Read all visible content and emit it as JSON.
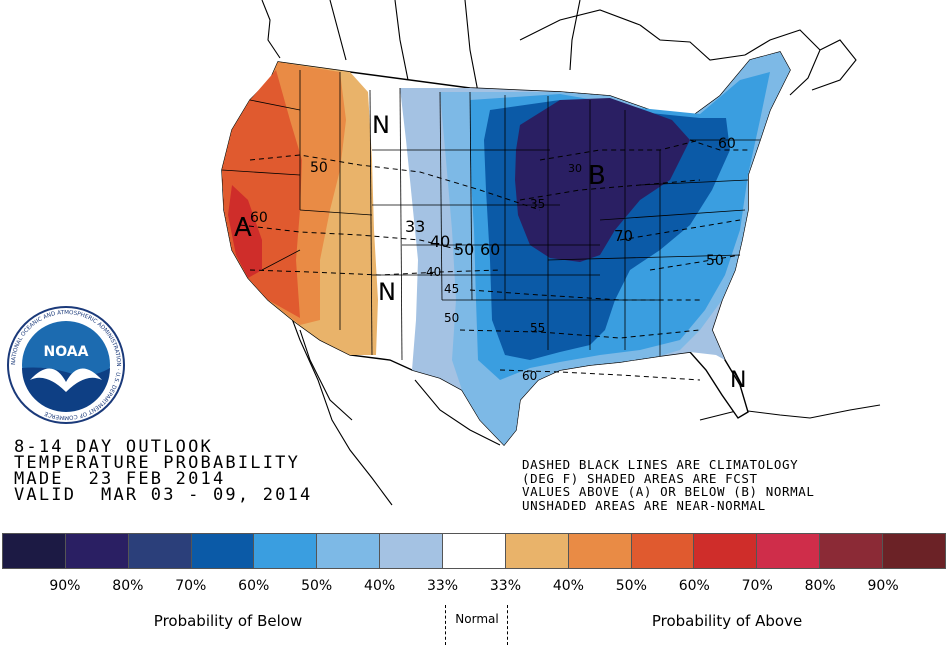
{
  "title_lines": [
    "8-14 DAY OUTLOOK",
    "TEMPERATURE PROBABILITY",
    "MADE  23 FEB 2014",
    "VALID  MAR 03 - 09, 2014"
  ],
  "note_lines": [
    "DASHED BLACK LINES ARE CLIMATOLOGY",
    "(DEG F) SHADED AREAS ARE FCST",
    "VALUES ABOVE (A) OR BELOW (B) NORMAL",
    "UNSHADED AREAS ARE NEAR-NORMAL"
  ],
  "logo_text": "NOAA",
  "logo_ring_text": "NATIONAL OCEANIC AND ATMOSPHERIC ADMINISTRATION · U.S. DEPARTMENT OF COMMERCE",
  "map_labels": {
    "a": "A",
    "b": "B",
    "n_north": "N",
    "n_center": "N",
    "n_florida": "N"
  },
  "contour_labels": [
    "50",
    "60",
    "33",
    "40",
    "50",
    "60",
    "30",
    "35",
    "70",
    "60",
    "50",
    "40",
    "45",
    "50",
    "55",
    "60"
  ],
  "colorbar": {
    "colors": [
      "#1c1a44",
      "#2a1f63",
      "#2b3f7a",
      "#0b5aa7",
      "#3a9ee0",
      "#7db9e6",
      "#a4c2e3",
      "#ffffff",
      "#e9b36a",
      "#e98b45",
      "#e05a2f",
      "#cf2d2a",
      "#cf2d4a",
      "#8b2a36",
      "#6b2226"
    ],
    "ticks": [
      "90%",
      "80%",
      "70%",
      "60%",
      "50%",
      "40%",
      "33%",
      "33%",
      "40%",
      "50%",
      "60%",
      "70%",
      "80%",
      "90%"
    ]
  },
  "categories": {
    "below": "Probability of Below",
    "normal": "Normal",
    "above": "Probability of Above"
  }
}
